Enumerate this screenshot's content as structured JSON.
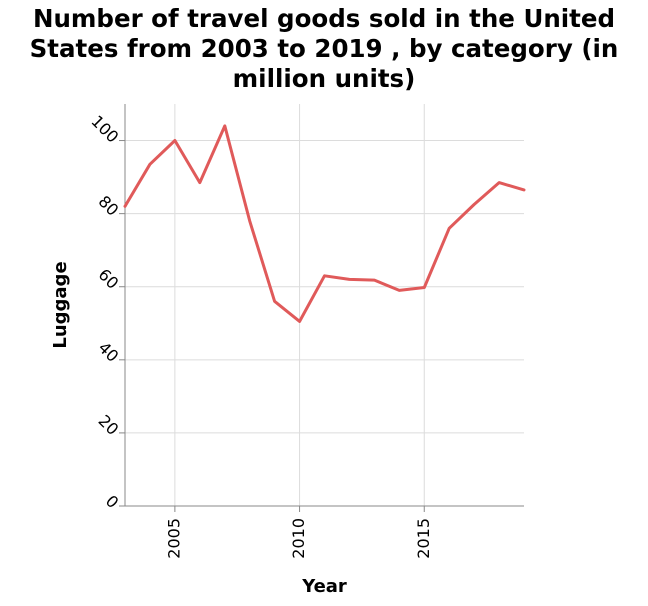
{
  "chart_data": {
    "type": "line",
    "title": "Number of travel goods sold in the United\nStates from 2003 to 2019 , by category (in\nmillion units)",
    "xlabel": "Year",
    "ylabel": "Luggage",
    "x": [
      2003,
      2004,
      2005,
      2006,
      2007,
      2008,
      2009,
      2010,
      2011,
      2012,
      2013,
      2014,
      2015,
      2016,
      2017,
      2018,
      2019
    ],
    "series": [
      {
        "values": [
          82,
          93.5,
          100,
          88.5,
          104,
          78,
          56,
          50.5,
          63,
          62,
          61.8,
          59,
          59.8,
          76,
          82.5,
          88.5,
          86.5
        ],
        "color": "#e05a5a"
      }
    ],
    "xlim": [
      2003,
      2019
    ],
    "ylim": [
      0,
      110
    ],
    "x_ticks": [
      2005,
      2010,
      2015
    ],
    "x_tick_labels": [
      "2005",
      "2010",
      "2015"
    ],
    "y_ticks": [
      0,
      20,
      40,
      60,
      80,
      100
    ],
    "y_tick_labels": [
      "0",
      "20",
      "40",
      "60",
      "80",
      "100"
    ],
    "grid": true,
    "legend": "none"
  }
}
